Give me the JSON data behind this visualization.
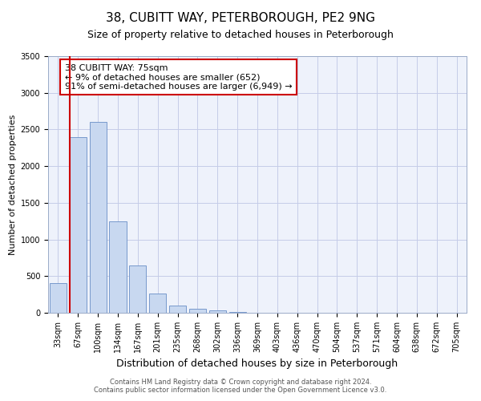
{
  "title": "38, CUBITT WAY, PETERBOROUGH, PE2 9NG",
  "subtitle": "Size of property relative to detached houses in Peterborough",
  "xlabel": "Distribution of detached houses by size in Peterborough",
  "ylabel": "Number of detached properties",
  "categories": [
    "33sqm",
    "67sqm",
    "100sqm",
    "134sqm",
    "167sqm",
    "201sqm",
    "235sqm",
    "268sqm",
    "302sqm",
    "336sqm",
    "369sqm",
    "403sqm",
    "436sqm",
    "470sqm",
    "504sqm",
    "537sqm",
    "571sqm",
    "604sqm",
    "638sqm",
    "672sqm",
    "705sqm"
  ],
  "bar_values": [
    400,
    2400,
    2600,
    1250,
    640,
    260,
    100,
    55,
    30,
    15,
    0,
    0,
    0,
    0,
    0,
    0,
    0,
    0,
    0,
    0,
    0
  ],
  "bar_color": "#c8d8f0",
  "bar_edge_color": "#7799cc",
  "vline_color": "#cc0000",
  "vline_pos": 0.575,
  "ylim": [
    0,
    3500
  ],
  "yticks": [
    0,
    500,
    1000,
    1500,
    2000,
    2500,
    3000,
    3500
  ],
  "annotation_title": "38 CUBITT WAY: 75sqm",
  "annotation_line1": "← 9% of detached houses are smaller (652)",
  "annotation_line2": "91% of semi-detached houses are larger (6,949) →",
  "annotation_box_color": "#cc0000",
  "footer_line1": "Contains HM Land Registry data © Crown copyright and database right 2024.",
  "footer_line2": "Contains public sector information licensed under the Open Government Licence v3.0.",
  "bg_color": "#eef2fb",
  "grid_color": "#c5cce8",
  "title_fontsize": 11,
  "subtitle_fontsize": 9,
  "xlabel_fontsize": 9,
  "ylabel_fontsize": 8,
  "tick_fontsize": 7,
  "annotation_fontsize": 8,
  "footer_fontsize": 6
}
